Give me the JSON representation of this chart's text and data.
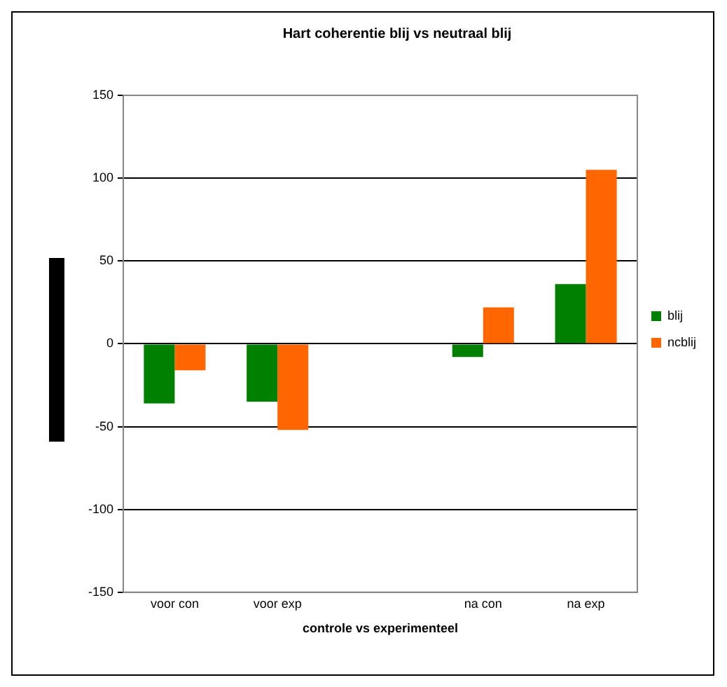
{
  "chart_data": {
    "type": "bar",
    "title": "Hart coherentie blij vs neutraal blij",
    "xlabel": "controle vs experimenteel",
    "categories": [
      "voor con",
      "voor exp",
      null,
      "na con",
      "na exp"
    ],
    "series": [
      {
        "name": "blij",
        "color": "#008000",
        "values": [
          -36,
          -35,
          null,
          -8,
          36
        ]
      },
      {
        "name": "ncblij",
        "color": "#ff6600",
        "values": [
          -16,
          -52,
          null,
          22,
          105
        ]
      }
    ],
    "ylim": [
      -150,
      150
    ],
    "yticks": [
      -150,
      -100,
      -50,
      0,
      50,
      100,
      150
    ],
    "grid": "y",
    "legend": "right"
  }
}
